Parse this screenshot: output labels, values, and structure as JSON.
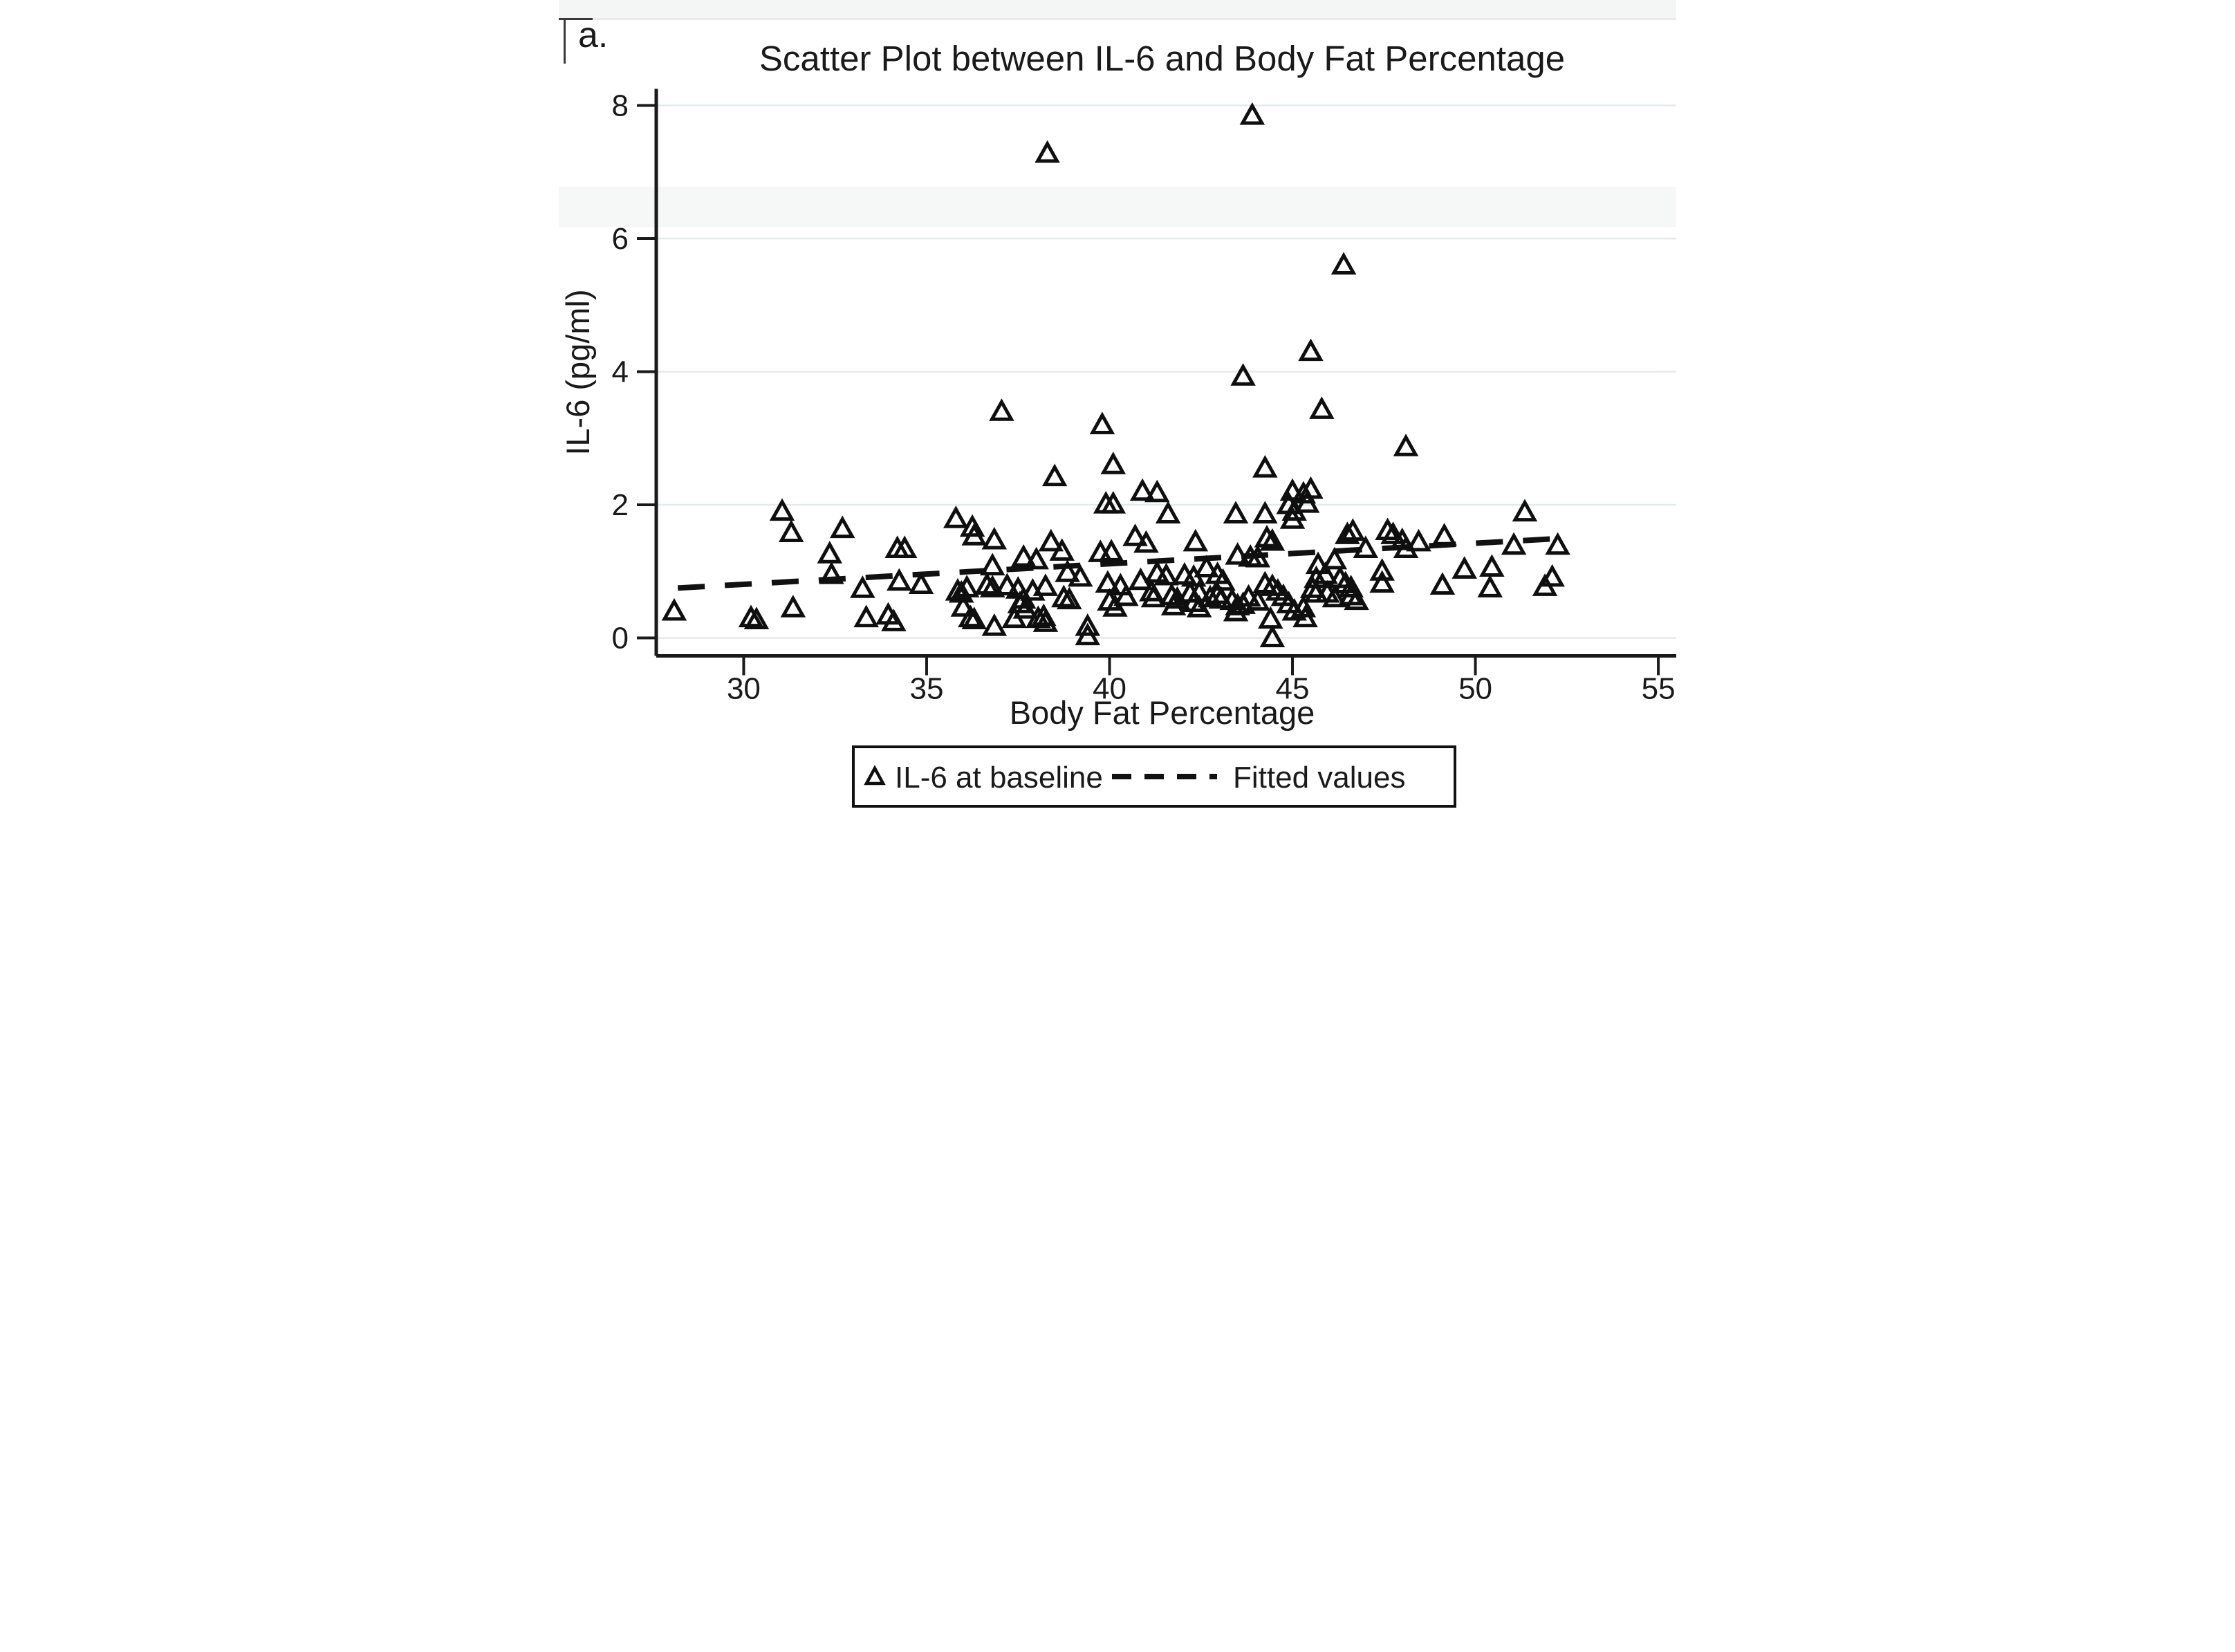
{
  "panel_label": "a.",
  "chart_data": {
    "type": "scatter",
    "title": "Scatter Plot between IL-6 and Body Fat Percentage",
    "xlabel": "Body Fat Percentage",
    "ylabel": "IL-6 (pg/ml)",
    "xlim": [
      27.61,
      55.49
    ],
    "ylim": [
      -0.27,
      8.25
    ],
    "x_ticks": [
      30,
      35,
      40,
      45,
      50,
      55
    ],
    "y_ticks": [
      0,
      2,
      4,
      6,
      8
    ],
    "grid": "horizontal",
    "legend_position": "bottom-center",
    "colors": {
      "marker": "#0f0f0f",
      "fitted_line": "#111111",
      "grid": "#e3eaec",
      "axis": "#1a1a1a",
      "legend_border": "#111111",
      "background": "#ffffff"
    },
    "series": [
      {
        "name": "IL-6 at baseline",
        "marker": "open-triangle",
        "points": [
          [
            28.1,
            0.4
          ],
          [
            30.2,
            0.3
          ],
          [
            30.35,
            0.27
          ],
          [
            31.05,
            1.9
          ],
          [
            31.3,
            1.58
          ],
          [
            31.35,
            0.45
          ],
          [
            32.35,
            1.26
          ],
          [
            32.4,
            0.95
          ],
          [
            32.7,
            1.64
          ],
          [
            33.25,
            0.74
          ],
          [
            33.35,
            0.3
          ],
          [
            33.95,
            0.34
          ],
          [
            34.1,
            0.24
          ],
          [
            34.2,
            1.34
          ],
          [
            34.4,
            1.34
          ],
          [
            34.25,
            0.85
          ],
          [
            34.85,
            0.8
          ],
          [
            35.8,
            1.79
          ],
          [
            35.85,
            0.7
          ],
          [
            35.95,
            0.67
          ],
          [
            36.1,
            0.75
          ],
          [
            36.0,
            0.46
          ],
          [
            36.2,
            0.3
          ],
          [
            36.3,
            0.27
          ],
          [
            36.25,
            1.66
          ],
          [
            36.3,
            1.53
          ],
          [
            36.65,
            0.79
          ],
          [
            36.8,
            0.75
          ],
          [
            36.85,
            0.17
          ],
          [
            36.85,
            1.47
          ],
          [
            36.8,
            1.08
          ],
          [
            37.2,
            0.78
          ],
          [
            37.4,
            0.29
          ],
          [
            37.5,
            0.73
          ],
          [
            37.55,
            0.51
          ],
          [
            37.65,
            0.58
          ],
          [
            37.7,
            0.43
          ],
          [
            37.9,
            0.7
          ],
          [
            37.65,
            1.21
          ],
          [
            38.0,
            1.17
          ],
          [
            38.05,
            0.29
          ],
          [
            38.2,
            0.32
          ],
          [
            38.25,
            0.23
          ],
          [
            38.25,
            0.77
          ],
          [
            38.4,
            1.44
          ],
          [
            38.7,
            1.3
          ],
          [
            38.75,
            0.6
          ],
          [
            38.9,
            0.57
          ],
          [
            38.85,
            0.98
          ],
          [
            39.2,
            0.91
          ],
          [
            39.4,
            0.03
          ],
          [
            39.4,
            0.17
          ],
          [
            39.75,
            1.28
          ],
          [
            40.05,
            1.29
          ],
          [
            39.9,
            2.01
          ],
          [
            40.1,
            2.01
          ],
          [
            39.95,
            0.82
          ],
          [
            40.0,
            0.55
          ],
          [
            40.15,
            0.46
          ],
          [
            40.3,
            0.78
          ],
          [
            37.05,
            3.4
          ],
          [
            39.8,
            3.2
          ],
          [
            40.1,
            2.6
          ],
          [
            38.5,
            2.42
          ],
          [
            40.45,
            0.62
          ],
          [
            40.9,
            2.2
          ],
          [
            41.3,
            2.18
          ],
          [
            40.7,
            1.52
          ],
          [
            41.0,
            1.42
          ],
          [
            40.85,
            0.86
          ],
          [
            41.3,
            0.97
          ],
          [
            41.55,
            0.93
          ],
          [
            41.15,
            0.69
          ],
          [
            41.2,
            0.6
          ],
          [
            41.6,
            1.86
          ],
          [
            41.7,
            0.63
          ],
          [
            41.85,
            0.58
          ],
          [
            41.75,
            0.48
          ],
          [
            42.05,
            0.94
          ],
          [
            42.3,
            0.91
          ],
          [
            42.2,
            0.67
          ],
          [
            42.45,
            0.68
          ],
          [
            42.3,
            0.53
          ],
          [
            42.45,
            0.45
          ],
          [
            42.35,
            1.44
          ],
          [
            42.65,
            1.05
          ],
          [
            42.75,
            0.6
          ],
          [
            42.95,
            0.95
          ],
          [
            43.1,
            0.85
          ],
          [
            42.95,
            0.65
          ],
          [
            43.05,
            0.58
          ],
          [
            43.35,
            0.56
          ],
          [
            43.5,
            0.48
          ],
          [
            43.45,
            1.86
          ],
          [
            43.5,
            1.24
          ],
          [
            43.85,
            1.21
          ],
          [
            44.05,
            1.2
          ],
          [
            43.65,
            0.5
          ],
          [
            43.8,
            0.61
          ],
          [
            43.45,
            0.39
          ],
          [
            44.05,
            0.55
          ],
          [
            44.25,
            0.81
          ],
          [
            44.25,
            1.86
          ],
          [
            44.3,
            1.5
          ],
          [
            44.45,
            1.45
          ],
          [
            44.45,
            0.77
          ],
          [
            44.6,
            0.7
          ],
          [
            44.4,
            0.28
          ],
          [
            44.45,
            0.0
          ],
          [
            44.75,
            0.62
          ],
          [
            44.9,
            0.51
          ],
          [
            45.05,
            0.4
          ],
          [
            44.9,
            2.0
          ],
          [
            45.0,
            2.2
          ],
          [
            45.05,
            1.9
          ],
          [
            45.0,
            1.78
          ],
          [
            45.5,
            2.23
          ],
          [
            45.3,
            2.16
          ],
          [
            45.4,
            2.02
          ],
          [
            45.7,
            1.1
          ],
          [
            46.15,
            1.17
          ],
          [
            45.9,
            0.95
          ],
          [
            45.65,
            0.89
          ],
          [
            46.3,
            0.89
          ],
          [
            46.45,
            0.81
          ],
          [
            46.6,
            0.75
          ],
          [
            45.55,
            0.74
          ],
          [
            45.65,
            0.67
          ],
          [
            45.95,
            0.67
          ],
          [
            46.15,
            0.6
          ],
          [
            46.6,
            0.63
          ],
          [
            46.75,
            0.56
          ],
          [
            45.3,
            0.45
          ],
          [
            45.35,
            0.3
          ],
          [
            46.65,
            1.6
          ],
          [
            46.5,
            1.55
          ],
          [
            47.0,
            1.34
          ],
          [
            47.6,
            1.61
          ],
          [
            47.75,
            1.55
          ],
          [
            48.0,
            1.46
          ],
          [
            48.1,
            1.34
          ],
          [
            48.45,
            1.44
          ],
          [
            47.45,
            1.0
          ],
          [
            47.45,
            0.82
          ],
          [
            49.1,
            0.79
          ],
          [
            49.15,
            1.53
          ],
          [
            49.7,
            1.03
          ],
          [
            45.8,
            3.43
          ],
          [
            48.1,
            2.87
          ],
          [
            44.25,
            2.55
          ],
          [
            46.4,
            5.6
          ],
          [
            45.5,
            4.3
          ],
          [
            43.65,
            3.93
          ],
          [
            51.35,
            1.89
          ],
          [
            51.05,
            1.39
          ],
          [
            52.25,
            1.39
          ],
          [
            50.45,
            1.06
          ],
          [
            50.4,
            0.75
          ],
          [
            52.1,
            0.91
          ],
          [
            51.9,
            0.77
          ],
          [
            38.3,
            7.28
          ],
          [
            43.9,
            7.85
          ]
        ]
      },
      {
        "name": "Fitted values",
        "marker": "dashed-line",
        "line": {
          "x1": 28.2,
          "y1": 0.75,
          "x2": 52.5,
          "y2": 1.5
        }
      }
    ],
    "legend": {
      "items": [
        {
          "label": "IL-6 at baseline",
          "marker": "open-triangle"
        },
        {
          "label": "Fitted values",
          "marker": "dashed-line"
        }
      ]
    }
  }
}
